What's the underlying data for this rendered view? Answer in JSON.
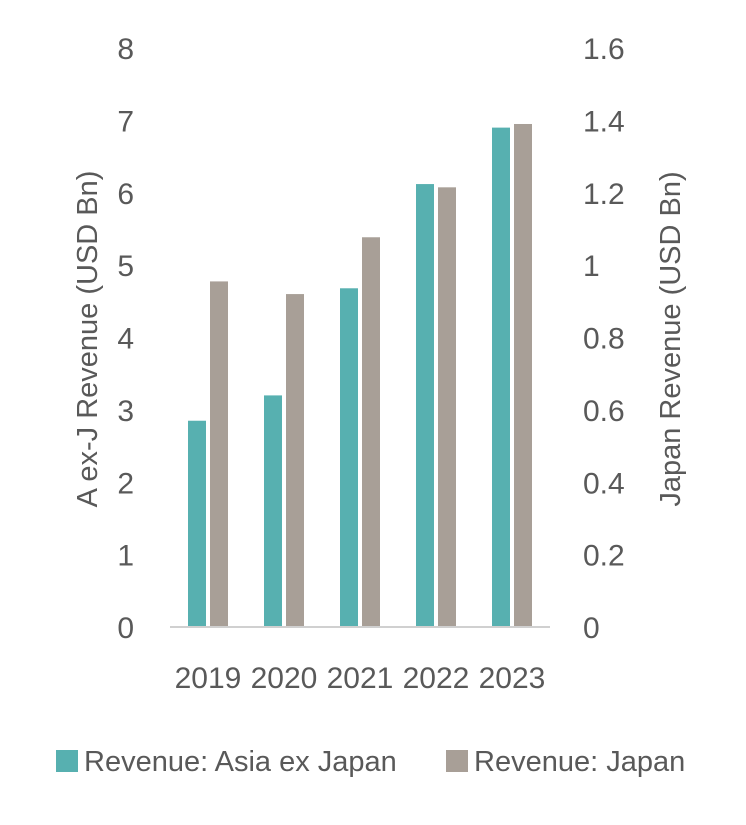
{
  "colors": {
    "series_asia": "#57b0b0",
    "series_japan": "#a89f97",
    "text": "#595959",
    "axis_line": "#d0d0d0"
  },
  "chart_data": {
    "type": "bar",
    "categories": [
      "2019",
      "2020",
      "2021",
      "2022",
      "2023"
    ],
    "series": [
      {
        "name": "Revenue: Asia ex Japan",
        "axis": "left",
        "values": [
          2.85,
          3.2,
          4.68,
          6.12,
          6.9
        ]
      },
      {
        "name": "Revenue: Japan",
        "axis": "right",
        "values": [
          0.955,
          0.92,
          1.077,
          1.215,
          1.39
        ]
      }
    ],
    "ylabel": "A ex-J Revenue (USD Bn)",
    "y2label": "Japan Revenue (USD Bn)",
    "ylim": [
      0,
      8
    ],
    "y2lim": [
      0,
      1.6
    ],
    "yticks": [
      "0",
      "1",
      "2",
      "3",
      "4",
      "5",
      "6",
      "7",
      "8"
    ],
    "y2ticks": [
      "0",
      "0.2",
      "0.4",
      "0.6",
      "0.8",
      "1",
      "1.2",
      "1.4",
      "1.6"
    ],
    "grid": false,
    "legend_position": "bottom"
  }
}
